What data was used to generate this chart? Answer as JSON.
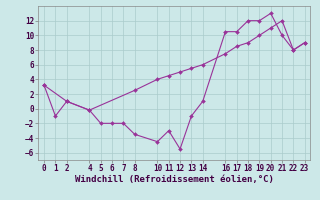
{
  "xlabel": "Windchill (Refroidissement éolien,°C)",
  "line1_x": [
    0,
    1,
    2,
    4,
    5,
    6,
    7,
    8,
    10,
    11,
    12,
    13,
    14,
    16,
    17,
    18,
    19,
    20,
    21,
    22,
    23
  ],
  "line1_y": [
    3.2,
    -1.0,
    1.0,
    -0.2,
    -2.0,
    -2.0,
    -2.0,
    -3.5,
    -4.5,
    -3.0,
    -5.5,
    -1.0,
    1.0,
    10.5,
    10.5,
    12.0,
    12.0,
    13.0,
    10.0,
    8.0,
    9.0
  ],
  "line2_x": [
    0,
    2,
    4,
    8,
    10,
    11,
    12,
    13,
    14,
    16,
    17,
    18,
    19,
    20,
    21,
    22,
    23
  ],
  "line2_y": [
    3.2,
    1.0,
    -0.2,
    2.5,
    4.0,
    4.5,
    5.0,
    5.5,
    6.0,
    7.5,
    8.5,
    9.0,
    10.0,
    11.0,
    12.0,
    8.0,
    9.0
  ],
  "line_color": "#993399",
  "bg_color": "#cce8e8",
  "grid_color": "#aacccc",
  "xlim": [
    -0.5,
    23.5
  ],
  "ylim": [
    -7,
    14
  ],
  "xticks": [
    0,
    1,
    2,
    4,
    5,
    6,
    7,
    8,
    10,
    11,
    12,
    13,
    14,
    16,
    17,
    18,
    19,
    20,
    21,
    22,
    23
  ],
  "yticks": [
    -6,
    -4,
    -2,
    0,
    2,
    4,
    6,
    8,
    10,
    12
  ],
  "tick_fontsize": 5.5,
  "xlabel_fontsize": 6.5
}
